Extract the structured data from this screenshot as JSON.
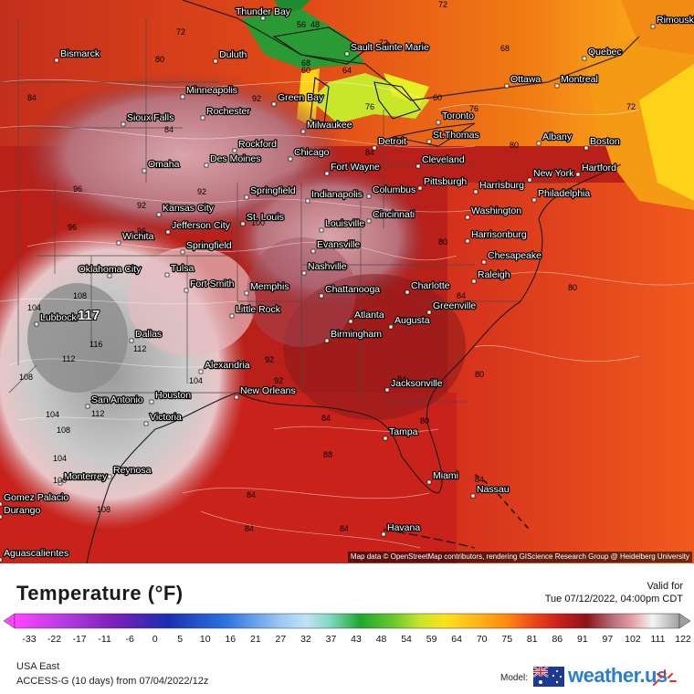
{
  "map": {
    "attribution": "Map data © OpenStreetMap contributors, rendering GIScience Research Group @ Heidelberg University",
    "cities": [
      {
        "name": "Thunder Bay"
      },
      {
        "name": "Bismarck"
      },
      {
        "name": "Duluth"
      },
      {
        "name": "Sault Sainte Marie"
      },
      {
        "name": "Quebec"
      },
      {
        "name": "Rimouski"
      },
      {
        "name": "Ottawa"
      },
      {
        "name": "Montreal"
      },
      {
        "name": "Minneapolis"
      },
      {
        "name": "Rochester"
      },
      {
        "name": "Green Bay"
      },
      {
        "name": "Toronto"
      },
      {
        "name": "Sioux Falls"
      },
      {
        "name": "Milwaukee"
      },
      {
        "name": "St.Thomas"
      },
      {
        "name": "Albany"
      },
      {
        "name": "Boston"
      },
      {
        "name": "Rockford"
      },
      {
        "name": "Detroit"
      },
      {
        "name": "Des Moines"
      },
      {
        "name": "Chicago"
      },
      {
        "name": "Cleveland"
      },
      {
        "name": "Omaha"
      },
      {
        "name": "Fort Wayne"
      },
      {
        "name": "Hartford"
      },
      {
        "name": "New York"
      },
      {
        "name": "Springfield"
      },
      {
        "name": "Indianapolis"
      },
      {
        "name": "Columbus"
      },
      {
        "name": "Pittsburgh"
      },
      {
        "name": "Harrisburg"
      },
      {
        "name": "Philadelphia"
      },
      {
        "name": "Kansas City"
      },
      {
        "name": "St. Louis"
      },
      {
        "name": "Cincinnati"
      },
      {
        "name": "Washington"
      },
      {
        "name": "Jefferson City"
      },
      {
        "name": "Louisville"
      },
      {
        "name": "Wichita"
      },
      {
        "name": "Evansville"
      },
      {
        "name": "Harrisonburg"
      },
      {
        "name": "Springfield"
      },
      {
        "name": "Chesapeake"
      },
      {
        "name": "Oklahoma City"
      },
      {
        "name": "Tulsa"
      },
      {
        "name": "Nashville"
      },
      {
        "name": "Raleigh"
      },
      {
        "name": "Fort Smith"
      },
      {
        "name": "Memphis"
      },
      {
        "name": "Chattanooga"
      },
      {
        "name": "Charlotte"
      },
      {
        "name": "Lubbock"
      },
      {
        "name": "Little Rock"
      },
      {
        "name": "Greenville"
      },
      {
        "name": "Atlanta"
      },
      {
        "name": "Augusta"
      },
      {
        "name": "Birmingham"
      },
      {
        "name": "Dallas"
      },
      {
        "name": "Alexandria"
      },
      {
        "name": "Jacksonville"
      },
      {
        "name": "San Antonio"
      },
      {
        "name": "Houston"
      },
      {
        "name": "New Orleans"
      },
      {
        "name": "Victoria"
      },
      {
        "name": "Tampa"
      },
      {
        "name": "Reynosa"
      },
      {
        "name": "Monterrey"
      },
      {
        "name": "Miami"
      },
      {
        "name": "Nassau"
      },
      {
        "name": "Gomez Palacio"
      },
      {
        "name": "Durango"
      },
      {
        "name": "Havana"
      },
      {
        "name": "Aguascalientes"
      }
    ],
    "contour_values": [
      72,
      56,
      48,
      60,
      72,
      80,
      68,
      72,
      64,
      76,
      68,
      60,
      76,
      72,
      92,
      84,
      84,
      96,
      96,
      92,
      92,
      100,
      104,
      108,
      117,
      116,
      112,
      112,
      108,
      104,
      104,
      108,
      112,
      104,
      100,
      108,
      96,
      92,
      88,
      84,
      84,
      84,
      84,
      80,
      80,
      80,
      80,
      84,
      84,
      84,
      80,
      84,
      92
    ]
  },
  "legend": {
    "title": "Temperature (°F)",
    "valid_label": "Valid for",
    "valid_time": "Tue 07/12/2022, 04:00pm CDT",
    "ticks": [
      "-33",
      "-22",
      "-17",
      "-11",
      "-6",
      "0",
      "5",
      "10",
      "16",
      "21",
      "27",
      "32",
      "37",
      "43",
      "48",
      "54",
      "59",
      "64",
      "70",
      "75",
      "81",
      "86",
      "91",
      "97",
      "102",
      "111",
      "122"
    ],
    "colors": {
      "cold_end": "#ff44ff",
      "purple": "#7a1fb8",
      "dark_blue": "#1a2fb0",
      "blue": "#2f74e0",
      "light_blue": "#9cc8f2",
      "teal": "#7fd8c0",
      "green": "#1fa82f",
      "yellow_green": "#c8e62a",
      "yellow": "#ffe01a",
      "orange": "#ff8a10",
      "red_orange": "#ee4818",
      "red": "#c81f1a",
      "dark_red": "#8a1418",
      "pink": "#e8a0a8",
      "white": "#f4f4f4",
      "grey": "#a0a0a0"
    }
  },
  "footer": {
    "region": "USA East",
    "model_run": "ACCESS-G (10 days) from 07/04/2022/12z",
    "model_label": "Model:",
    "brand": "weather.us",
    "flag_icon": "australia-flag-icon"
  }
}
